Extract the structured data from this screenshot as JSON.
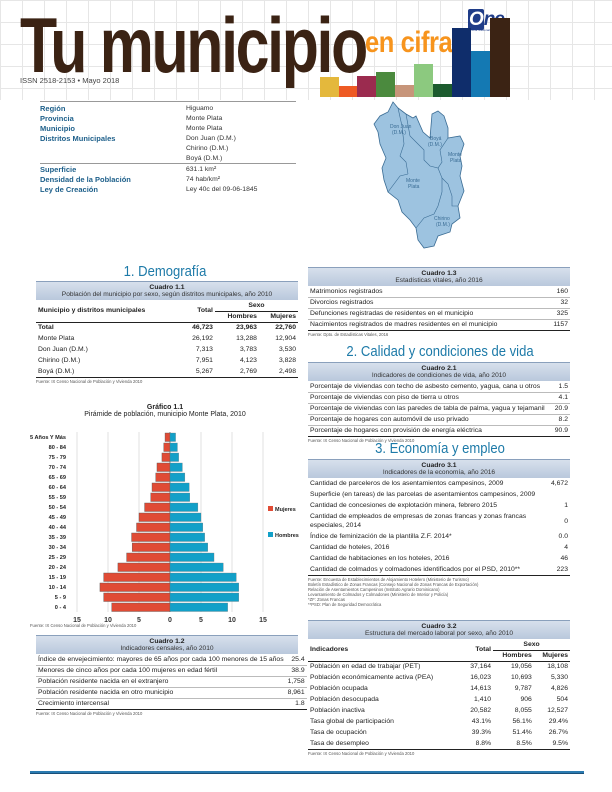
{
  "header": {
    "title": "Tu municipio",
    "subtitle": "en cifras",
    "issn": "ISSN 2518-2153 • Mayo 2018",
    "logo_text_o": "O",
    "logo_text_rest": "ne",
    "logo_tagline": "Oficina Nacional de Estadística",
    "bars_colors": [
      "#e4b83c",
      "#ee5a24",
      "#9b2b4f",
      "#4b8a3e",
      "#c7957a",
      "#8cc97f",
      "#1c5b2e",
      "#0f2d6b",
      "#1479b3",
      "#3b2314"
    ]
  },
  "info": {
    "rows": [
      {
        "label": "Región",
        "value": "Higuamo"
      },
      {
        "label": "Provincia",
        "value": "Monte Plata"
      },
      {
        "label": "Municipio",
        "value": "Monte Plata"
      },
      {
        "label": "Distritos Municipales",
        "value": "Don Juan (D.M.)"
      },
      {
        "label": "",
        "value": "Chirino (D.M.)"
      },
      {
        "label": "",
        "value": "Boyá (D.M.)"
      },
      {
        "label": "Superficie",
        "value": "631.1 km²"
      },
      {
        "label": "Densidad de la Población",
        "value": "74 hab/km²"
      },
      {
        "label": "Ley de Creación",
        "value": "Ley 40c del 09-06-1845"
      }
    ]
  },
  "map": {
    "regions": [
      {
        "label1": "Don Juan",
        "label2": "(D.M.)"
      },
      {
        "label1": "Boyá",
        "label2": "(D.M.)"
      },
      {
        "label1": "Monte",
        "label2": "Plata"
      },
      {
        "label1": "Monte",
        "label2": "Plata"
      },
      {
        "label1": "Chirino",
        "label2": "(D.M.)"
      }
    ],
    "fill": "#9dc3e0",
    "stroke": "#3a6c94"
  },
  "sections": {
    "s1": "1. Demografía",
    "s2": "2. Calidad y condiciones de vida",
    "s3": "3. Economía y empleo"
  },
  "cuadro_1_1": {
    "num": "Cuadro 1.1",
    "caption": "Población del municipio por sexo, según distritos municipales, año 2010",
    "col_name": "Municipio y distritos municipales",
    "col_total": "Total",
    "col_sexo": "Sexo",
    "col_h": "Hombres",
    "col_m": "Mujeres",
    "rows": [
      {
        "name": "Total",
        "total": "46,723",
        "h": "23,963",
        "m": "22,760"
      },
      {
        "name": "Monte Plata",
        "total": "26,192",
        "h": "13,288",
        "m": "12,904"
      },
      {
        "name": "Don Juan (D.M.)",
        "total": "7,313",
        "h": "3,783",
        "m": "3,530"
      },
      {
        "name": "Chirino (D.M.)",
        "total": "7,951",
        "h": "4,123",
        "m": "3,828"
      },
      {
        "name": "Boyá (D.M.)",
        "total": "5,267",
        "h": "2,769",
        "m": "2,498"
      }
    ],
    "source": "Fuente: IX Censo Nacional de Población y Vivienda 2010"
  },
  "grafico_1_1": {
    "num": "Gráfico 1.1",
    "caption": "Pirámide de población, municipio Monte Plata, 2010",
    "source": "Fuente: IX Censo Nacional de Población y Vivienda 2010"
  },
  "chart_data": {
    "type": "bar",
    "orientation": "horizontal",
    "title": "Gráfico 1.1 Pirámide de población, municipio Monte Plata, 2010",
    "categories": [
      "85 Años Y Más",
      "80 - 84",
      "75 - 79",
      "70 - 74",
      "65 - 69",
      "60 - 64",
      "55 - 59",
      "50 - 54",
      "45 - 49",
      "40 - 44",
      "35 - 39",
      "30 - 34",
      "25 - 29",
      "20 - 24",
      "15 - 19",
      "10 - 14",
      "5 - 9",
      "0 - 4"
    ],
    "series": [
      {
        "name": "Mujeres",
        "color": "#e04b35",
        "values": [
          0.8,
          1.0,
          1.3,
          2.1,
          2.3,
          2.9,
          3.1,
          4.1,
          5.0,
          5.4,
          6.2,
          6.1,
          7.0,
          8.4,
          10.7,
          11.3,
          10.7,
          9.4
        ]
      },
      {
        "name": "Hombres",
        "color": "#12a0c8",
        "values": [
          0.9,
          1.2,
          1.4,
          2.0,
          2.4,
          3.1,
          3.2,
          4.5,
          5.0,
          5.3,
          5.6,
          6.1,
          7.1,
          8.6,
          10.7,
          11.1,
          11.1,
          9.3
        ]
      }
    ],
    "xticks": [
      "15",
      "10",
      "5",
      "0",
      "5",
      "10",
      "15"
    ],
    "xlim": [
      -15,
      15
    ],
    "xlabel": "",
    "ylabel": "",
    "grid": true,
    "legend_position": "right"
  },
  "cuadro_1_2": {
    "num": "Cuadro 1.2",
    "caption": "Indicadores censales, año 2010",
    "rows": [
      {
        "label": "Índice de envejecimiento: mayores de 65 años por cada 100 menores de 15 años",
        "value": "25.4"
      },
      {
        "label": "Menores de cinco años por cada 100 mujeres en edad fértil",
        "value": "38.9"
      },
      {
        "label": "Población residente nacida en el extranjero",
        "value": "1,758"
      },
      {
        "label": "Población residente nacida en otro municipio",
        "value": "8,961"
      },
      {
        "label": "Crecimiento intercensal",
        "value": "1.8"
      }
    ],
    "source": "Fuente: IX Censo Nacional de Población y Vivienda 2010"
  },
  "cuadro_1_3": {
    "num": "Cuadro 1.3",
    "caption": "Estadísticas vitales, año 2016",
    "rows": [
      {
        "label": "Matrimonios registrados",
        "value": "160"
      },
      {
        "label": "Divorcios registrados",
        "value": "32"
      },
      {
        "label": "Defunciones registradas de residentes en el municipio",
        "value": "325"
      },
      {
        "label": "Nacimientos registrados de madres residentes en el municipio",
        "value": "1157"
      }
    ],
    "source": "Fuente: Dpto. de Estadísticas Vitales, 2016"
  },
  "cuadro_2_1": {
    "num": "Cuadro 2.1",
    "caption": "Indicadores de condiciones de vida, año 2010",
    "rows": [
      {
        "label": "Porcentaje de viviendas con techo de asbesto cemento, yagua, cana u otros",
        "value": "1.5"
      },
      {
        "label": "Porcentaje de viviendas con piso de tierra u otros",
        "value": "4.1"
      },
      {
        "label": "Porcentaje de viviendas con las paredes de tabla de palma, yagua y tejamanil",
        "value": "20.9"
      },
      {
        "label": "Porcentaje de hogares con automóvil de uso privado",
        "value": "8.2"
      },
      {
        "label": "Porcentaje de hogares con provisión de energía eléctrica",
        "value": "90.9"
      }
    ],
    "source": "Fuente: IX Censo Nacional de Población y Vivienda 2010"
  },
  "cuadro_3_1": {
    "num": "Cuadro 3.1",
    "caption": "Indicadores de la economía, año 2016",
    "rows": [
      {
        "label": "Cantidad de parceleros de los asentamientos campesinos, 2009",
        "value": "4,672"
      },
      {
        "label": "Superficie (en tareas) de las parcelas de asentamientos campesinos, 2009",
        "value": ""
      },
      {
        "label": "Cantidad de concesiones de explotación minera, febrero 2015",
        "value": "1"
      },
      {
        "label": "Cantidad de empleados de empresas de zonas francas y zonas francas especiales, 2014",
        "value": "0"
      },
      {
        "label": "Índice de feminización de la plantilla Z.F. 2014*",
        "value": "0.0"
      },
      {
        "label": "Cantidad de hoteles, 2016",
        "value": "4"
      },
      {
        "label": "Cantidad de habitaciones en los hoteles, 2016",
        "value": "46"
      },
      {
        "label": "Cantidad de colmados y colmadones identificados por el PSD, 2010**",
        "value": "223"
      }
    ],
    "source_lines": [
      "Fuente: Encuesta de Establecimientos de Alojamiento Hotelero (Ministerio de Turismo)",
      "Boletín Estadístico de Zonas Francas (Consejo Nacional de Zonas Francas de Exportación)",
      "Relación de Asentamientos Campesinos (Instituto Agrario Dominicano)",
      "Levantamiento de Colmados y Colmadones (Ministerio de Interior y Policía)",
      "*ZF: Zonas Francas",
      "**PSD: Plan de Seguridad Democrática"
    ]
  },
  "cuadro_3_2": {
    "num": "Cuadro 3.2",
    "caption": "Estructura del mercado laboral por sexo, año 2010",
    "col_name": "Indicadores",
    "col_total": "Total",
    "col_sexo": "Sexo",
    "col_h": "Hombres",
    "col_m": "Mujeres",
    "rows": [
      {
        "name": "Población en edad de trabajar (PET)",
        "total": "37,164",
        "h": "19,056",
        "m": "18,108"
      },
      {
        "name": "Población económicamente activa (PEA)",
        "total": "16,023",
        "h": "10,693",
        "m": "5,330"
      },
      {
        "name": "Población ocupada",
        "total": "14,613",
        "h": "9,787",
        "m": "4,826"
      },
      {
        "name": "Población desocupada",
        "total": "1,410",
        "h": "906",
        "m": "504"
      },
      {
        "name": "Población inactiva",
        "total": "20,582",
        "h": "8,055",
        "m": "12,527"
      },
      {
        "name": "Tasa global de participación",
        "total": "43.1%",
        "h": "56.1%",
        "m": "29.4%"
      },
      {
        "name": "Tasa de ocupación",
        "total": "39.3%",
        "h": "51.4%",
        "m": "26.7%"
      },
      {
        "name": "Tasa de desempleo",
        "total": "8.8%",
        "h": "8.5%",
        "m": "9.5%"
      }
    ],
    "source": "Fuente: IX Censo Nacional de Población y Vivienda 2010"
  }
}
